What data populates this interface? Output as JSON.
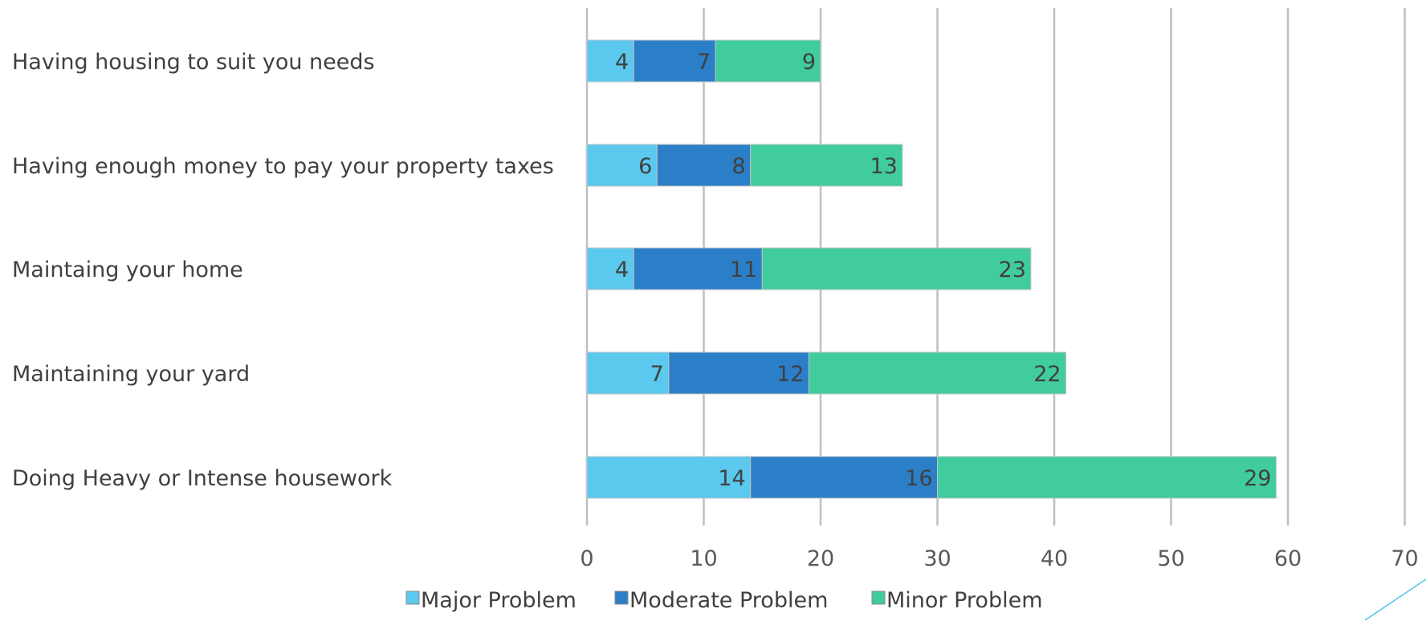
{
  "chart_data": {
    "type": "bar",
    "orientation": "horizontal",
    "stacked": true,
    "title": "",
    "xlabel": "",
    "ylabel": "",
    "xlim": [
      0,
      70
    ],
    "x_ticks": [
      0,
      10,
      20,
      30,
      40,
      50,
      60,
      70
    ],
    "grid": "vertical",
    "legend_position": "bottom",
    "categories": [
      "Having housing to suit you needs",
      "Having enough money to pay your property taxes",
      "Maintaing your home",
      "Maintaining your yard",
      "Doing Heavy or Intense housework"
    ],
    "series": [
      {
        "name": "Major Problem",
        "color": "#5bc8ee",
        "values": [
          4,
          6,
          4,
          7,
          14
        ]
      },
      {
        "name": "Moderate Problem",
        "color": "#2b7fc8",
        "values": [
          7,
          8,
          11,
          12,
          16
        ]
      },
      {
        "name": "Minor Problem",
        "color": "#40cc9c",
        "values": [
          9,
          13,
          23,
          22,
          29
        ]
      }
    ],
    "data_labels": true
  }
}
